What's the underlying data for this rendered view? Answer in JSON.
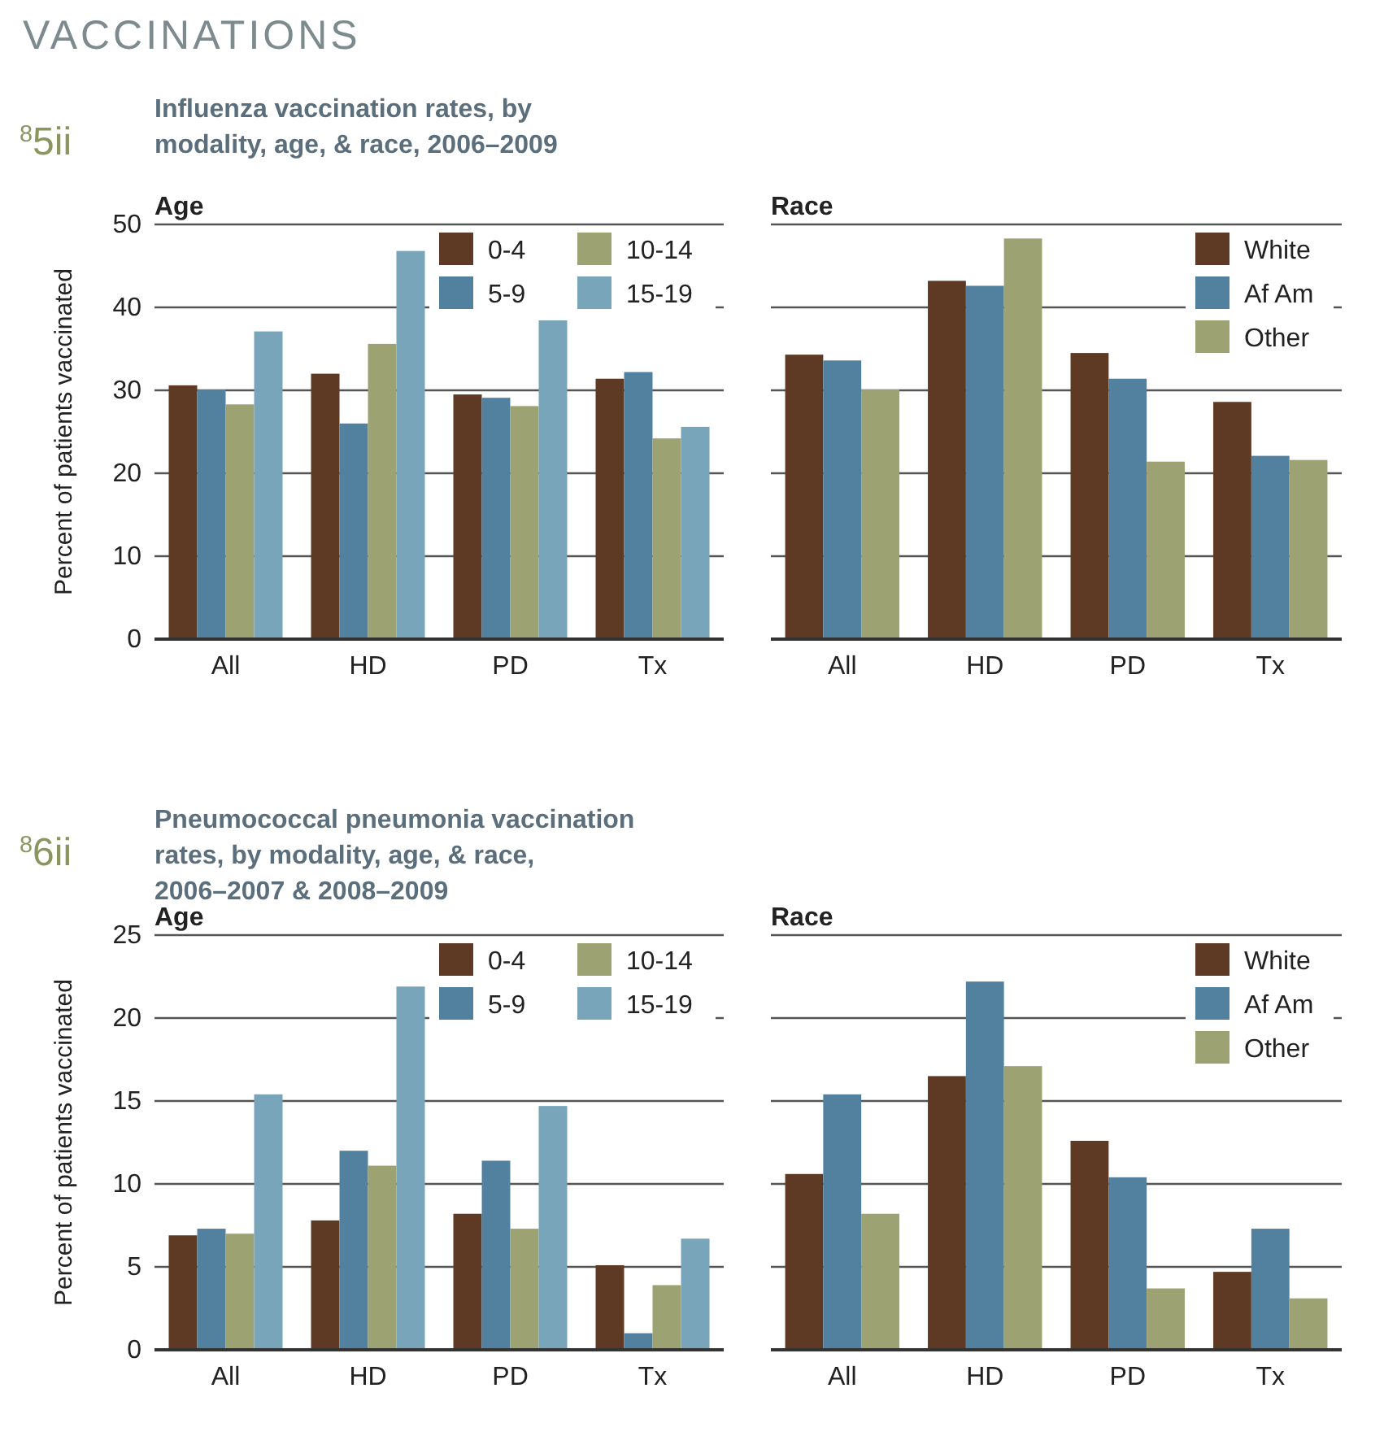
{
  "chart_data": [
    {
      "type": "bar",
      "title": "Influenza vaccination rates, by modality, age, & race, 2006–2009",
      "subtitle": "Age",
      "annotations": [
        "VACCINATIONS",
        "$^{8}$5ii"
      ],
      "ylabel": "Percent of patients vaccinated",
      "categories": [
        "All",
        "HD",
        "PD",
        "Tx"
      ],
      "ylim": [
        0,
        50
      ],
      "yticks": [
        0,
        10,
        20,
        30,
        40,
        50
      ],
      "grid": "y",
      "legend": "top right",
      "series": [
        {
          "name": "0-4",
          "color": "#5e3a24",
          "values": [
            30.6,
            32.0,
            29.5,
            31.4
          ]
        },
        {
          "name": "5-9",
          "color": "#52819f",
          "values": [
            30.1,
            26.0,
            29.1,
            32.2
          ]
        },
        {
          "name": "10-14",
          "color": "#9da272",
          "values": [
            28.3,
            35.6,
            28.1,
            24.2
          ]
        },
        {
          "name": "15-19",
          "color": "#79a5bb",
          "values": [
            37.1,
            46.8,
            38.5,
            25.6
          ]
        }
      ]
    },
    {
      "type": "bar",
      "subtitle": "Race",
      "categories": [
        "All",
        "HD",
        "PD",
        "Tx"
      ],
      "ylim": [
        0,
        50
      ],
      "yticks": [
        0,
        10,
        20,
        30,
        40,
        50
      ],
      "tick_labels": "x",
      "grid": "y",
      "legend": "top right",
      "series": [
        {
          "name": "White",
          "color": "#5e3a24",
          "values": [
            34.3,
            43.2,
            34.5,
            28.6
          ]
        },
        {
          "name": "Af Am",
          "color": "#52819f",
          "values": [
            33.6,
            42.6,
            31.4,
            22.1
          ]
        },
        {
          "name": "Other",
          "color": "#9da272",
          "values": [
            30.1,
            48.3,
            21.4,
            21.6
          ]
        }
      ]
    },
    {
      "type": "bar",
      "title": "Pneumococcal pneumonia vaccination rates, by modality, age, & race, 2006–2007 & 2008–2009",
      "subtitle": "Age",
      "annotations": [
        "$^{8}$6ii"
      ],
      "ylabel": "Percent of patients vaccinated",
      "categories": [
        "All",
        "HD",
        "PD",
        "Tx"
      ],
      "ylim": [
        0,
        25
      ],
      "yticks": [
        0,
        5,
        10,
        15,
        20,
        25
      ],
      "grid": "y",
      "legend": "top right",
      "series": [
        {
          "name": "0-4",
          "color": "#5e3a24",
          "values": [
            6.9,
            7.8,
            8.2,
            5.1
          ]
        },
        {
          "name": "5-9",
          "color": "#52819f",
          "values": [
            7.3,
            12.0,
            11.4,
            1.0
          ]
        },
        {
          "name": "10-14",
          "color": "#9da272",
          "values": [
            7.0,
            11.1,
            7.3,
            3.9
          ]
        },
        {
          "name": "15-19",
          "color": "#79a5bb",
          "values": [
            15.4,
            21.9,
            14.7,
            6.7
          ]
        }
      ]
    },
    {
      "type": "bar",
      "subtitle": "Race",
      "categories": [
        "All",
        "HD",
        "PD",
        "Tx"
      ],
      "ylim": [
        0,
        25
      ],
      "yticks": [
        0,
        5,
        10,
        15,
        20,
        25
      ],
      "tick_labels": "x",
      "grid": "y",
      "legend": "top right",
      "series": [
        {
          "name": "White",
          "color": "#5e3a24",
          "values": [
            10.6,
            16.5,
            12.6,
            4.7
          ]
        },
        {
          "name": "Af Am",
          "color": "#52819f",
          "values": [
            15.4,
            22.2,
            10.4,
            7.3
          ]
        },
        {
          "name": "Other",
          "color": "#9da272",
          "values": [
            8.2,
            17.1,
            3.7,
            3.1
          ]
        }
      ]
    }
  ]
}
